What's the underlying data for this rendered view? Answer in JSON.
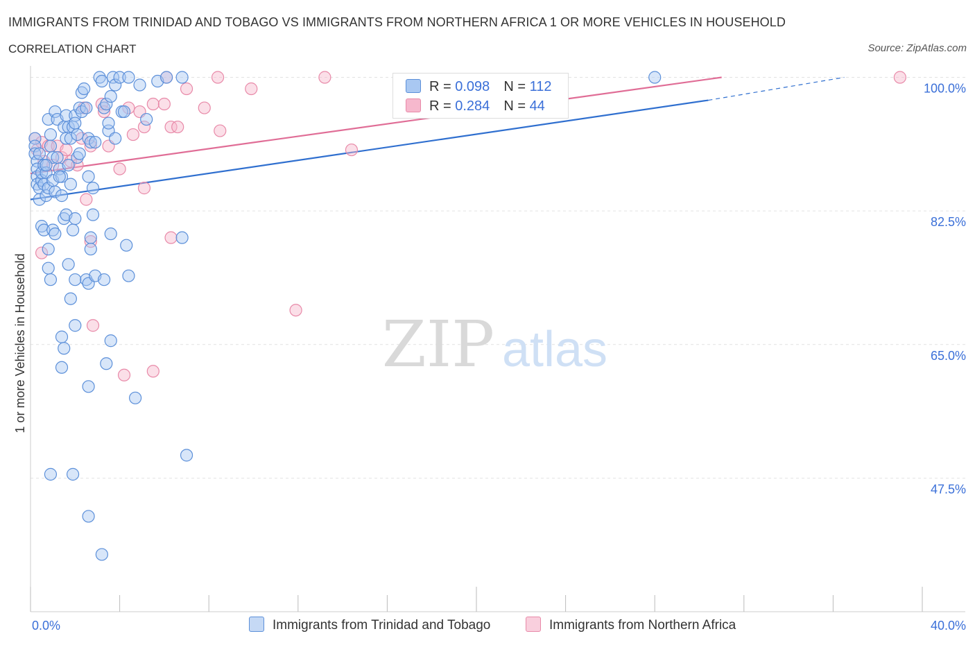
{
  "header": {
    "title": "IMMIGRANTS FROM TRINIDAD AND TOBAGO VS IMMIGRANTS FROM NORTHERN AFRICA 1 OR MORE VEHICLES IN HOUSEHOLD",
    "subtitle": "CORRELATION CHART",
    "source": "Source: ZipAtlas.com"
  },
  "watermark": {
    "zip": "ZIP",
    "atlas": "atlas"
  },
  "legend": {
    "rows": [
      {
        "r_label": "R = ",
        "r_value": "0.098",
        "n_label": "N = ",
        "n_value": "112"
      },
      {
        "r_label": "R = ",
        "r_value": "0.284",
        "n_label": "N = ",
        "n_value": "44"
      }
    ]
  },
  "colors": {
    "series1_fill": "#a9c8f2",
    "series1_stroke": "#5b8fd9",
    "series1_line": "#2f6fcf",
    "series2_fill": "#f6b8cd",
    "series2_stroke": "#e889a8",
    "series2_line": "#e06d96",
    "axis_label": "#3a6fd8",
    "grid": "#e2e2e2"
  },
  "chart_data": {
    "type": "scatter",
    "ylabel": "1 or more Vehicles in Household",
    "xlim": [
      0,
      40
    ],
    "ylim": [
      30,
      101.5
    ],
    "x_tick_labels": [
      {
        "value": 0,
        "label": "0.0%"
      },
      {
        "value": 40,
        "label": "40.0%"
      }
    ],
    "y_tick_labels": [
      {
        "value": 100,
        "label": "100.0%"
      },
      {
        "value": 82.5,
        "label": "82.5%"
      },
      {
        "value": 65,
        "label": "65.0%"
      },
      {
        "value": 47.5,
        "label": "47.5%"
      }
    ],
    "grid": true,
    "legend_position": "top-center",
    "series": [
      {
        "name": "Immigrants from Trinidad and Tobago",
        "trend": {
          "x0": 0,
          "y0": 84.0,
          "x1": 30.4,
          "y1": 97.0,
          "dash_to_x": 36.5,
          "dash_to_y": 100.0
        },
        "points": [
          [
            0.2,
            92.0
          ],
          [
            0.2,
            91.0
          ],
          [
            0.2,
            90.0
          ],
          [
            0.3,
            89.0
          ],
          [
            0.3,
            88.0
          ],
          [
            0.3,
            87.0
          ],
          [
            0.3,
            86.0
          ],
          [
            0.4,
            85.5
          ],
          [
            0.4,
            84.0
          ],
          [
            0.5,
            86.5
          ],
          [
            0.5,
            87.5
          ],
          [
            0.6,
            88.5
          ],
          [
            0.6,
            86.0
          ],
          [
            0.7,
            87.5
          ],
          [
            0.7,
            84.5
          ],
          [
            0.8,
            85.5
          ],
          [
            0.8,
            94.5
          ],
          [
            0.9,
            92.5
          ],
          [
            0.9,
            91.0
          ],
          [
            1.0,
            89.5
          ],
          [
            1.0,
            86.5
          ],
          [
            1.1,
            85.0
          ],
          [
            1.1,
            95.5
          ],
          [
            1.2,
            94.5
          ],
          [
            1.2,
            89.5
          ],
          [
            1.3,
            88.0
          ],
          [
            1.4,
            87.0
          ],
          [
            1.4,
            84.5
          ],
          [
            1.5,
            93.5
          ],
          [
            1.6,
            92.0
          ],
          [
            1.6,
            95.0
          ],
          [
            1.7,
            93.5
          ],
          [
            1.8,
            92.0
          ],
          [
            1.9,
            93.5
          ],
          [
            2.0,
            95.0
          ],
          [
            2.0,
            94.0
          ],
          [
            2.1,
            92.5
          ],
          [
            2.1,
            89.5
          ],
          [
            2.2,
            96.0
          ],
          [
            2.3,
            95.5
          ],
          [
            2.3,
            98.0
          ],
          [
            2.4,
            98.5
          ],
          [
            2.5,
            96.0
          ],
          [
            2.6,
            87.0
          ],
          [
            2.6,
            92.0
          ],
          [
            2.7,
            91.5
          ],
          [
            2.8,
            85.5
          ],
          [
            2.9,
            91.5
          ],
          [
            3.1,
            100.0
          ],
          [
            3.2,
            99.5
          ],
          [
            3.3,
            96.0
          ],
          [
            3.4,
            96.5
          ],
          [
            3.5,
            93.0
          ],
          [
            3.6,
            97.5
          ],
          [
            3.7,
            100.0
          ],
          [
            3.8,
            99.0
          ],
          [
            3.8,
            92.0
          ],
          [
            4.0,
            100.0
          ],
          [
            4.1,
            95.5
          ],
          [
            4.2,
            95.5
          ],
          [
            4.4,
            100.0
          ],
          [
            4.9,
            99.0
          ],
          [
            5.2,
            94.5
          ],
          [
            5.7,
            99.5
          ],
          [
            6.1,
            100.0
          ],
          [
            6.8,
            100.0
          ],
          [
            0.5,
            80.5
          ],
          [
            0.6,
            80.0
          ],
          [
            0.8,
            77.5
          ],
          [
            0.8,
            75.0
          ],
          [
            0.9,
            73.5
          ],
          [
            1.0,
            80.0
          ],
          [
            1.1,
            79.5
          ],
          [
            1.5,
            81.5
          ],
          [
            1.6,
            82.0
          ],
          [
            1.7,
            75.5
          ],
          [
            1.8,
            71.0
          ],
          [
            1.9,
            80.0
          ],
          [
            2.0,
            81.5
          ],
          [
            2.0,
            73.5
          ],
          [
            2.5,
            73.5
          ],
          [
            2.6,
            73.0
          ],
          [
            2.7,
            79.0
          ],
          [
            2.7,
            77.5
          ],
          [
            2.8,
            82.0
          ],
          [
            2.9,
            74.0
          ],
          [
            3.3,
            73.5
          ],
          [
            3.6,
            79.5
          ],
          [
            4.3,
            78.0
          ],
          [
            4.4,
            74.0
          ],
          [
            6.8,
            79.0
          ],
          [
            2.0,
            67.5
          ],
          [
            1.4,
            66.0
          ],
          [
            1.5,
            64.5
          ],
          [
            1.4,
            62.0
          ],
          [
            3.4,
            62.5
          ],
          [
            3.6,
            65.5
          ],
          [
            2.6,
            59.5
          ],
          [
            4.7,
            58.0
          ],
          [
            7.0,
            50.5
          ],
          [
            0.9,
            48.0
          ],
          [
            1.9,
            48.0
          ],
          [
            2.6,
            42.5
          ],
          [
            3.2,
            37.5
          ],
          [
            28.0,
            100.0
          ],
          [
            0.7,
            88.5
          ],
          [
            1.3,
            87.0
          ],
          [
            1.7,
            88.5
          ],
          [
            3.5,
            94.0
          ],
          [
            2.2,
            90.0
          ],
          [
            0.4,
            90.0
          ],
          [
            1.8,
            86.0
          ]
        ]
      },
      {
        "name": "Immigrants from Northern Africa",
        "trend": {
          "x0": 0,
          "y0": 87.4,
          "x1": 31.0,
          "y1": 100.0
        },
        "points": [
          [
            0.2,
            92.0
          ],
          [
            0.3,
            90.5
          ],
          [
            0.5,
            91.5
          ],
          [
            0.6,
            89.0
          ],
          [
            0.8,
            91.0
          ],
          [
            1.0,
            88.5
          ],
          [
            1.2,
            91.0
          ],
          [
            1.4,
            89.5
          ],
          [
            1.6,
            90.5
          ],
          [
            1.8,
            89.0
          ],
          [
            2.1,
            88.5
          ],
          [
            2.3,
            92.0
          ],
          [
            2.4,
            96.0
          ],
          [
            2.7,
            91.0
          ],
          [
            3.2,
            96.5
          ],
          [
            3.3,
            95.5
          ],
          [
            3.5,
            91.0
          ],
          [
            4.0,
            88.0
          ],
          [
            4.4,
            96.0
          ],
          [
            4.6,
            92.5
          ],
          [
            4.9,
            95.5
          ],
          [
            5.1,
            93.5
          ],
          [
            5.5,
            96.5
          ],
          [
            6.0,
            96.5
          ],
          [
            6.3,
            93.5
          ],
          [
            6.6,
            93.5
          ],
          [
            7.0,
            98.5
          ],
          [
            7.8,
            96.0
          ],
          [
            8.5,
            93.0
          ],
          [
            9.9,
            98.5
          ],
          [
            13.2,
            100.0
          ],
          [
            14.4,
            90.5
          ],
          [
            39.0,
            100.0
          ],
          [
            8.4,
            100.0
          ],
          [
            6.1,
            100.0
          ],
          [
            2.5,
            84.0
          ],
          [
            5.1,
            85.5
          ],
          [
            6.3,
            79.0
          ],
          [
            2.7,
            78.5
          ],
          [
            0.5,
            77.0
          ],
          [
            11.9,
            69.5
          ],
          [
            2.8,
            67.5
          ],
          [
            4.2,
            61.0
          ],
          [
            5.5,
            61.5
          ]
        ]
      }
    ]
  }
}
